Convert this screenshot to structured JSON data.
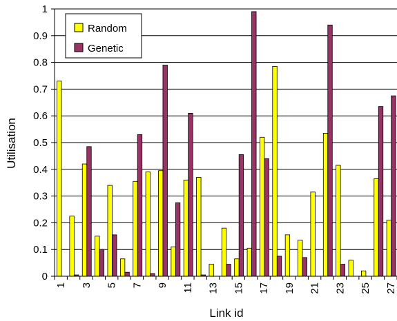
{
  "chart_data": {
    "type": "bar",
    "title": "",
    "xlabel": "Link id",
    "ylabel": "Utilisation",
    "ylim": [
      0,
      1
    ],
    "yticks": [
      0,
      0.1,
      0.2,
      0.3,
      0.4,
      0.5,
      0.6,
      0.7,
      0.8,
      0.9,
      1
    ],
    "ytick_labels": [
      "0",
      "0.1",
      "0.2",
      "0.3",
      "0.4",
      "0.5",
      "0.6",
      "0.7",
      "0.8",
      "0.9",
      "1"
    ],
    "grid": true,
    "legend_position": "top-left",
    "categories": [
      1,
      2,
      3,
      4,
      5,
      6,
      7,
      8,
      9,
      10,
      11,
      12,
      13,
      14,
      15,
      16,
      17,
      18,
      19,
      20,
      21,
      22,
      23,
      24,
      25,
      26,
      27
    ],
    "x_tick_labels": [
      "1",
      "3",
      "5",
      "7",
      "9",
      "11",
      "13",
      "15",
      "17",
      "19",
      "21",
      "23",
      "25",
      "27"
    ],
    "series": [
      {
        "name": "Random",
        "color": "#ffff00",
        "values": [
          0.73,
          0.225,
          0.42,
          0.15,
          0.34,
          0.065,
          0.355,
          0.39,
          0.395,
          0.11,
          0.36,
          0.37,
          0.045,
          0.18,
          0.065,
          0.105,
          0.52,
          0.785,
          0.155,
          0.135,
          0.315,
          0.535,
          0.415,
          0.06,
          0.02,
          0.365,
          0.21
        ]
      },
      {
        "name": "Genetic",
        "color": "#993366",
        "values": [
          0,
          0.005,
          0.485,
          0.1,
          0.155,
          0.015,
          0.53,
          0.01,
          0.79,
          0.275,
          0.61,
          0.005,
          0,
          0.045,
          0.455,
          0.99,
          0.44,
          0.075,
          0,
          0.07,
          0,
          0.94,
          0.045,
          0,
          0,
          0.635,
          0.675
        ]
      }
    ]
  }
}
